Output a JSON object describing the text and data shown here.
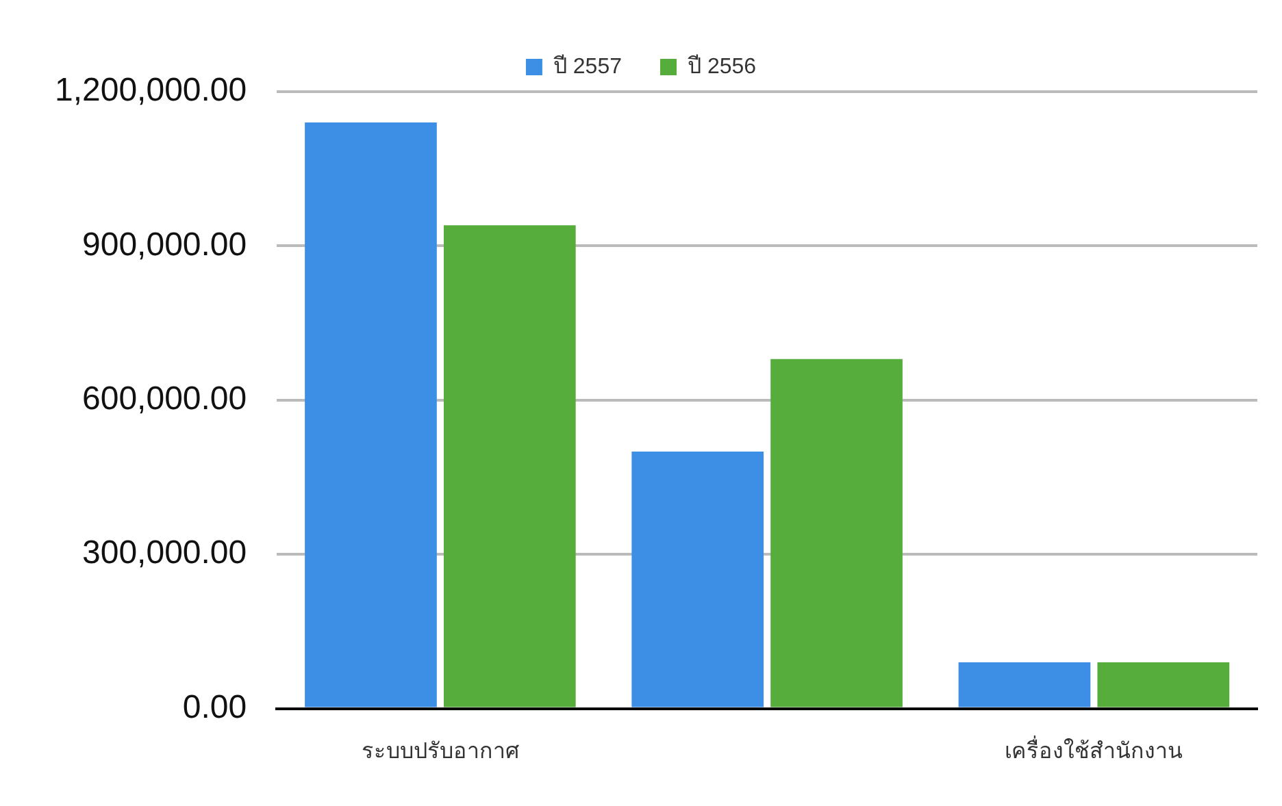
{
  "chart_data": {
    "type": "bar",
    "categories": [
      "ระบบปรับอากาศ",
      null,
      "เครื่องใช้สำนักงาน"
    ],
    "series": [
      {
        "name": "ปี 2557",
        "color": "#3d8fe6",
        "values": [
          1140000,
          500000,
          90000
        ]
      },
      {
        "name": "ปี 2556",
        "color": "#56ad3c",
        "values": [
          940000,
          680000,
          90000
        ]
      }
    ],
    "ylim": [
      0,
      1200000
    ],
    "yticks": [
      {
        "value": 0,
        "label": "0.00"
      },
      {
        "value": 300000,
        "label": "300,000.00"
      },
      {
        "value": 600000,
        "label": "600,000.00"
      },
      {
        "value": 900000,
        "label": "900,000.00"
      },
      {
        "value": 1200000,
        "label": "1,200,000.00"
      }
    ],
    "grid": "y",
    "legend": "top"
  }
}
